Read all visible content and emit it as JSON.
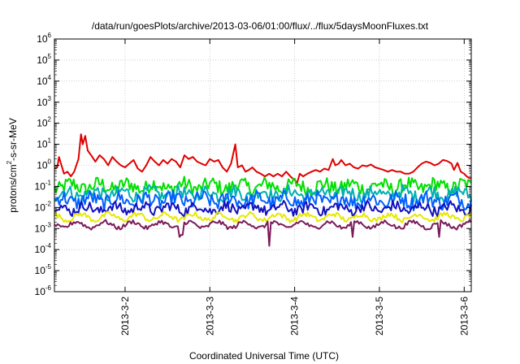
{
  "chart_data": {
    "type": "line",
    "title": "/data/run/goesPlots/archive/2013-03-06/01:00/flux/../flux/5daysMoonFluxes.txt",
    "xlabel": "Coordinated Universal Time (UTC)",
    "ylabel": {
      "prefix": "protons/cm",
      "sup": "2",
      "suffix": "-s-sr-MeV"
    },
    "yscale": "log",
    "ylim_exp": [
      -6,
      6
    ],
    "xlim": [
      "2013-03-01 04:00",
      "2013-03-06 02:00"
    ],
    "grid": true,
    "legend": "none",
    "x_ticks": [
      {
        "label": "2013-3-2",
        "day": 1.0
      },
      {
        "label": "2013-3-3",
        "day": 2.0
      },
      {
        "label": "2013-3-4",
        "day": 3.0
      },
      {
        "label": "2013-3-5",
        "day": 4.0
      },
      {
        "label": "2013-3-6",
        "day": 5.0
      }
    ],
    "y_ticks": [
      {
        "base": "10",
        "exp": "6"
      },
      {
        "base": "10",
        "exp": "5"
      },
      {
        "base": "10",
        "exp": "4"
      },
      {
        "base": "10",
        "exp": "3"
      },
      {
        "base": "10",
        "exp": "2"
      },
      {
        "base": "10",
        "exp": "1"
      },
      {
        "base": "10",
        "exp": "0"
      },
      {
        "base": "10",
        "exp": "-1"
      },
      {
        "base": "10",
        "exp": "-2"
      },
      {
        "base": "10",
        "exp": "-3"
      },
      {
        "base": "10",
        "exp": "-4"
      },
      {
        "base": "10",
        "exp": "-5"
      },
      {
        "base": "10",
        "exp": "-6"
      }
    ],
    "x_day_range": [
      0.1667,
      5.0833
    ],
    "series": [
      {
        "color": "#e00000",
        "points": [
          [
            0.17,
            0.7
          ],
          [
            0.2,
            0.8
          ],
          [
            0.22,
            2.5
          ],
          [
            0.25,
            1.0
          ],
          [
            0.28,
            0.4
          ],
          [
            0.32,
            0.5
          ],
          [
            0.36,
            0.3
          ],
          [
            0.4,
            0.5
          ],
          [
            0.45,
            2.0
          ],
          [
            0.48,
            30
          ],
          [
            0.5,
            10
          ],
          [
            0.53,
            25
          ],
          [
            0.56,
            5
          ],
          [
            0.6,
            3
          ],
          [
            0.65,
            1.5
          ],
          [
            0.7,
            3
          ],
          [
            0.75,
            2
          ],
          [
            0.8,
            1.0
          ],
          [
            0.85,
            2.5
          ],
          [
            0.9,
            1.5
          ],
          [
            0.95,
            1.0
          ],
          [
            1.0,
            0.8
          ],
          [
            1.05,
            1.2
          ],
          [
            1.1,
            1.8
          ],
          [
            1.15,
            0.7
          ],
          [
            1.2,
            0.5
          ],
          [
            1.25,
            1.0
          ],
          [
            1.3,
            2.5
          ],
          [
            1.35,
            1.5
          ],
          [
            1.4,
            1.0
          ],
          [
            1.45,
            1.8
          ],
          [
            1.5,
            1.2
          ],
          [
            1.55,
            2.0
          ],
          [
            1.6,
            1.5
          ],
          [
            1.65,
            0.8
          ],
          [
            1.7,
            3.0
          ],
          [
            1.75,
            2.0
          ],
          [
            1.8,
            2.5
          ],
          [
            1.85,
            1.5
          ],
          [
            1.9,
            1.2
          ],
          [
            1.95,
            1.0
          ],
          [
            2.0,
            2.0
          ],
          [
            2.05,
            1.5
          ],
          [
            2.1,
            1.8
          ],
          [
            2.15,
            0.8
          ],
          [
            2.2,
            0.5
          ],
          [
            2.25,
            1.2
          ],
          [
            2.3,
            10
          ],
          [
            2.33,
            0.8
          ],
          [
            2.38,
            1.0
          ],
          [
            2.42,
            0.5
          ],
          [
            2.46,
            0.6
          ],
          [
            2.5,
            0.8
          ],
          [
            2.55,
            0.5
          ],
          [
            2.6,
            0.4
          ],
          [
            2.65,
            0.3
          ],
          [
            2.7,
            0.4
          ],
          [
            2.75,
            0.3
          ],
          [
            2.8,
            0.4
          ],
          [
            2.85,
            0.3
          ],
          [
            2.9,
            0.5
          ],
          [
            2.95,
            0.3
          ],
          [
            3.0,
            0.2
          ],
          [
            3.03,
            0.15
          ],
          [
            3.06,
            0.4
          ],
          [
            3.1,
            0.3
          ],
          [
            3.15,
            0.4
          ],
          [
            3.2,
            0.5
          ],
          [
            3.25,
            0.6
          ],
          [
            3.3,
            0.5
          ],
          [
            3.35,
            0.7
          ],
          [
            3.4,
            0.6
          ],
          [
            3.45,
            2.0
          ],
          [
            3.48,
            1.0
          ],
          [
            3.52,
            1.2
          ],
          [
            3.55,
            1.8
          ],
          [
            3.6,
            1.0
          ],
          [
            3.65,
            1.2
          ],
          [
            3.7,
            0.8
          ],
          [
            3.75,
            0.7
          ],
          [
            3.8,
            1.0
          ],
          [
            3.85,
            0.9
          ],
          [
            3.9,
            1.1
          ],
          [
            3.95,
            0.8
          ],
          [
            4.0,
            0.7
          ],
          [
            4.05,
            0.6
          ],
          [
            4.1,
            0.5
          ],
          [
            4.15,
            0.6
          ],
          [
            4.2,
            0.5
          ],
          [
            4.25,
            0.5
          ],
          [
            4.3,
            0.4
          ],
          [
            4.35,
            0.4
          ],
          [
            4.4,
            0.5
          ],
          [
            4.45,
            0.8
          ],
          [
            4.5,
            1.2
          ],
          [
            4.55,
            1.5
          ],
          [
            4.6,
            1.3
          ],
          [
            4.65,
            1.0
          ],
          [
            4.7,
            1.2
          ],
          [
            4.75,
            1.8
          ],
          [
            4.8,
            1.6
          ],
          [
            4.85,
            1.2
          ],
          [
            4.88,
            0.6
          ],
          [
            4.92,
            1.3
          ],
          [
            4.96,
            0.5
          ],
          [
            5.0,
            0.4
          ],
          [
            5.03,
            0.3
          ],
          [
            5.06,
            0.25
          ],
          [
            5.08,
            0.25
          ]
        ]
      },
      {
        "color": "#00e000",
        "base": 0.1,
        "spread": 0.35,
        "dips": []
      },
      {
        "color": "#00b0b0",
        "base": 0.045,
        "spread": 0.3,
        "dips": []
      },
      {
        "color": "#0060ff",
        "base": 0.022,
        "spread": 0.35,
        "dips": []
      },
      {
        "color": "#1010c0",
        "base": 0.009,
        "spread": 0.25,
        "dips": []
      },
      {
        "color": "#e8e800",
        "base": 0.0035,
        "spread": 0.12,
        "dips": []
      },
      {
        "color": "#7a1a5a",
        "base": 0.0015,
        "spread": 0.1,
        "dips": [
          [
            1.65,
            0.0004
          ],
          [
            1.67,
            0.0005
          ],
          [
            2.7,
            0.00015
          ],
          [
            3.68,
            0.0004
          ],
          [
            4.7,
            0.0004
          ]
        ]
      }
    ]
  }
}
